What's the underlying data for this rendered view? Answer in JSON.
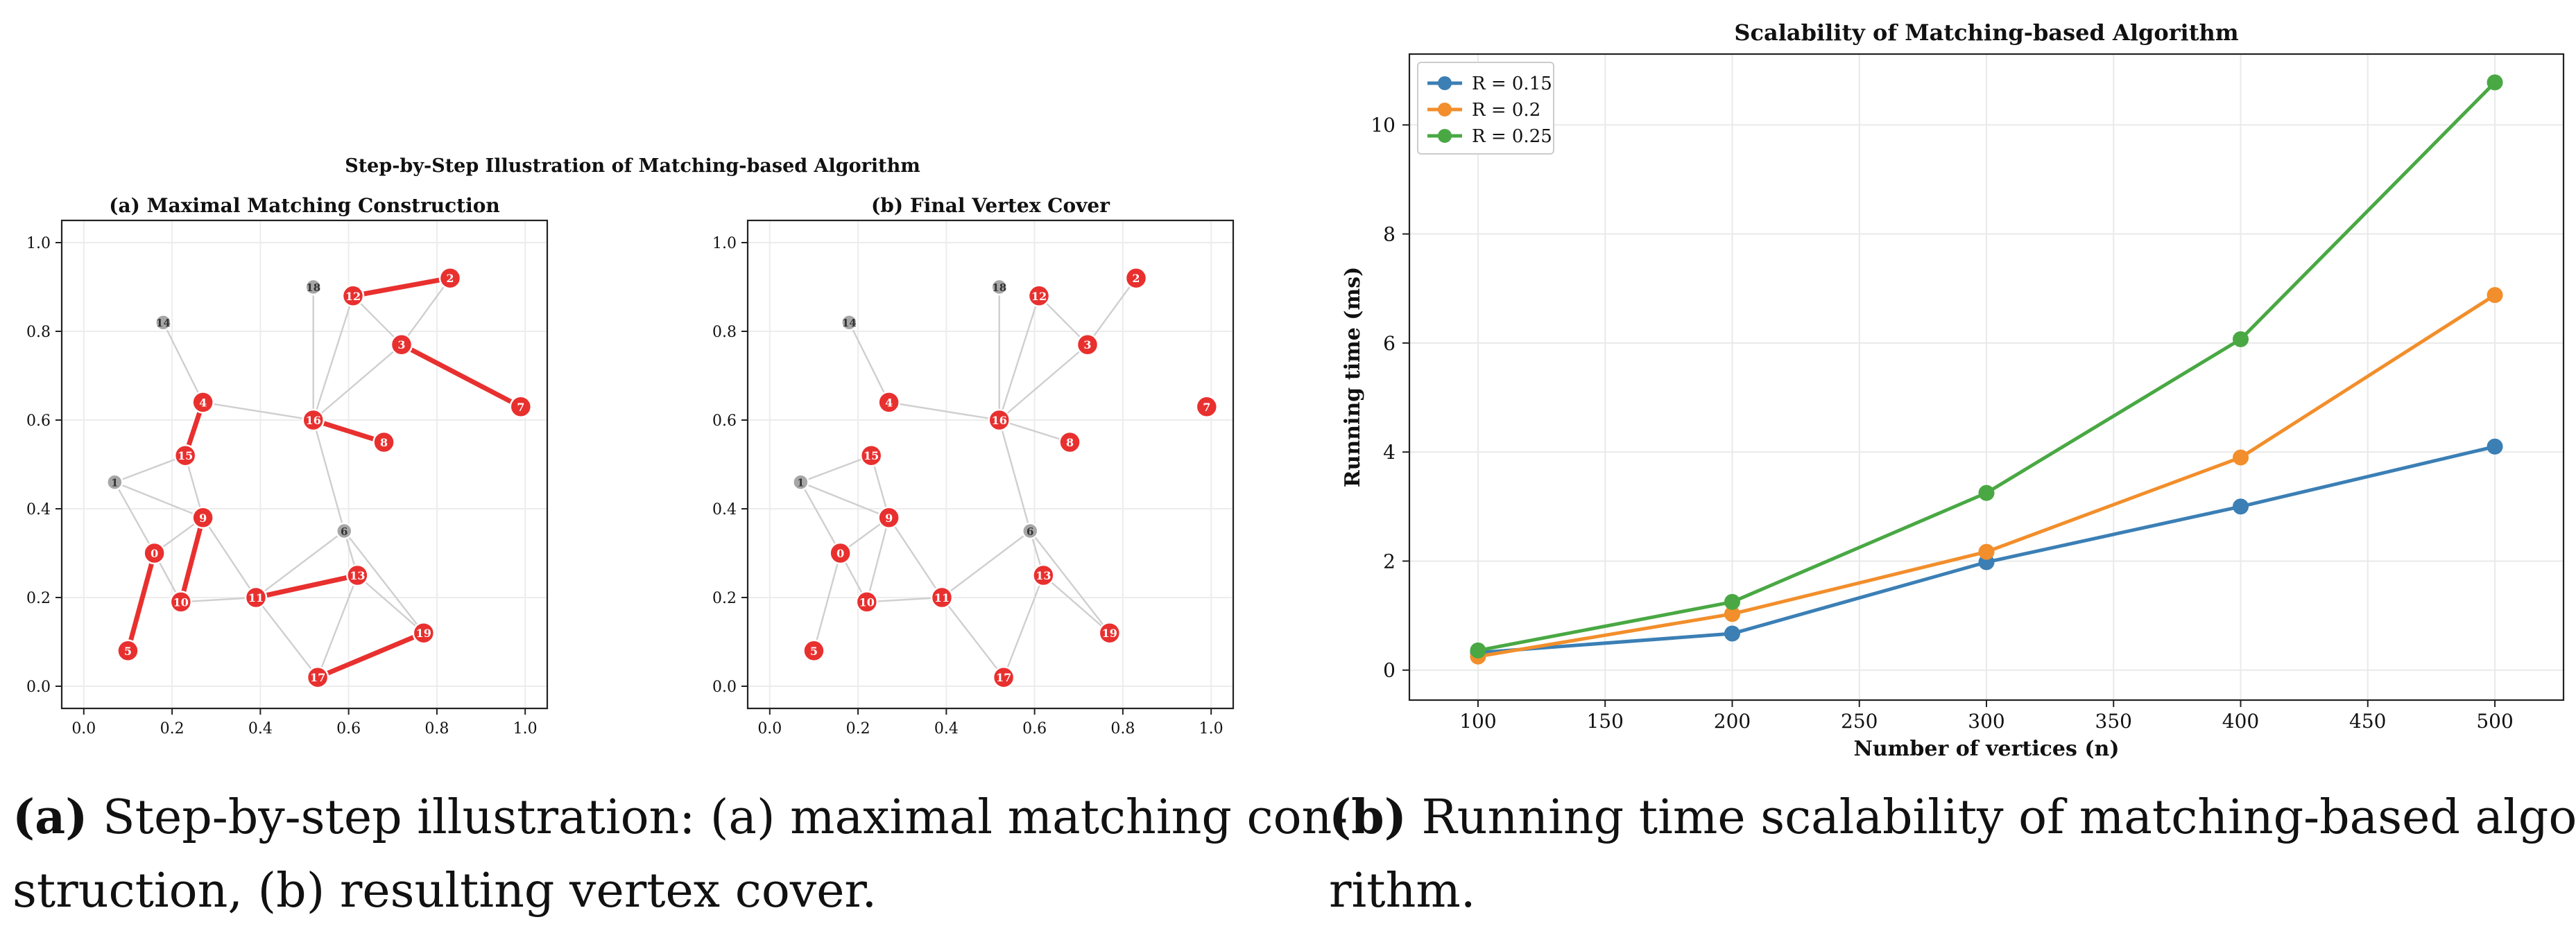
{
  "figure_left": {
    "suptitle": "Step-by-Step Illustration of Matching-based Algorithm",
    "caption_tag": "(a)",
    "caption_line1": " Step-by-step illustration: (a) maximal matching con-",
    "caption_line2": "struction, (b) resulting vertex cover."
  },
  "figure_right": {
    "caption_tag": "(b)",
    "caption_line1": " Running time scalability of matching-based algo-",
    "caption_line2": "rithm."
  },
  "colors": {
    "matched": "#e8302f",
    "unmatched": "#a6a6a6",
    "edge": "#cfcfcf",
    "series": [
      "#3b7fb5",
      "#f28e2b",
      "#49a843"
    ]
  },
  "chart_data": [
    {
      "type": "graph",
      "title": "(a) Maximal Matching Construction",
      "xlim": [
        -0.05,
        1.05
      ],
      "ylim": [
        -0.05,
        1.05
      ],
      "ticks": [
        0.0,
        0.2,
        0.4,
        0.6,
        0.8,
        1.0
      ],
      "tick_labels": [
        "0.0",
        "0.2",
        "0.4",
        "0.6",
        "0.8",
        "1.0"
      ],
      "grid": true,
      "nodes": [
        {
          "id": "0",
          "x": 0.16,
          "y": 0.3,
          "red": true
        },
        {
          "id": "1",
          "x": 0.07,
          "y": 0.46,
          "red": false
        },
        {
          "id": "2",
          "x": 0.83,
          "y": 0.92,
          "red": true
        },
        {
          "id": "3",
          "x": 0.72,
          "y": 0.77,
          "red": true
        },
        {
          "id": "4",
          "x": 0.27,
          "y": 0.64,
          "red": true
        },
        {
          "id": "5",
          "x": 0.1,
          "y": 0.08,
          "red": true
        },
        {
          "id": "6",
          "x": 0.59,
          "y": 0.35,
          "red": false
        },
        {
          "id": "7",
          "x": 0.99,
          "y": 0.63,
          "red": true
        },
        {
          "id": "8",
          "x": 0.68,
          "y": 0.55,
          "red": true
        },
        {
          "id": "9",
          "x": 0.27,
          "y": 0.38,
          "red": true
        },
        {
          "id": "10",
          "x": 0.22,
          "y": 0.19,
          "red": true
        },
        {
          "id": "11",
          "x": 0.39,
          "y": 0.2,
          "red": true
        },
        {
          "id": "12",
          "x": 0.61,
          "y": 0.88,
          "red": true
        },
        {
          "id": "13",
          "x": 0.62,
          "y": 0.25,
          "red": true
        },
        {
          "id": "14",
          "x": 0.18,
          "y": 0.82,
          "red": false
        },
        {
          "id": "15",
          "x": 0.23,
          "y": 0.52,
          "red": true
        },
        {
          "id": "16",
          "x": 0.52,
          "y": 0.6,
          "red": true
        },
        {
          "id": "17",
          "x": 0.53,
          "y": 0.02,
          "red": true
        },
        {
          "id": "18",
          "x": 0.52,
          "y": 0.9,
          "red": false
        },
        {
          "id": "19",
          "x": 0.77,
          "y": 0.12,
          "red": true
        }
      ],
      "edges": [
        [
          "14",
          "4"
        ],
        [
          "4",
          "16"
        ],
        [
          "1",
          "15"
        ],
        [
          "1",
          "9"
        ],
        [
          "1",
          "0"
        ],
        [
          "15",
          "9"
        ],
        [
          "0",
          "9"
        ],
        [
          "9",
          "10"
        ],
        [
          "0",
          "10"
        ],
        [
          "9",
          "11"
        ],
        [
          "10",
          "11"
        ],
        [
          "11",
          "6"
        ],
        [
          "11",
          "17"
        ],
        [
          "13",
          "19"
        ],
        [
          "6",
          "13"
        ],
        [
          "6",
          "16"
        ],
        [
          "6",
          "19"
        ],
        [
          "18",
          "16"
        ],
        [
          "12",
          "16"
        ],
        [
          "3",
          "16"
        ],
        [
          "12",
          "3"
        ],
        [
          "2",
          "3"
        ],
        [
          "16",
          "8"
        ],
        [
          "5",
          "0"
        ],
        [
          "17",
          "13"
        ]
      ],
      "matching": [
        [
          "5",
          "0"
        ],
        [
          "15",
          "4"
        ],
        [
          "9",
          "10"
        ],
        [
          "11",
          "13"
        ],
        [
          "17",
          "19"
        ],
        [
          "16",
          "8"
        ],
        [
          "12",
          "2"
        ],
        [
          "3",
          "7"
        ]
      ]
    },
    {
      "type": "graph",
      "title": "(b) Final Vertex Cover",
      "xlim": [
        -0.05,
        1.05
      ],
      "ylim": [
        -0.05,
        1.05
      ],
      "ticks": [
        0.0,
        0.2,
        0.4,
        0.6,
        0.8,
        1.0
      ],
      "tick_labels": [
        "0.0",
        "0.2",
        "0.4",
        "0.6",
        "0.8",
        "1.0"
      ],
      "grid": true
    },
    {
      "type": "line",
      "title": "Scalability of Matching-based Algorithm",
      "xlabel": "Number of vertices (n)",
      "ylabel": "Running time (ms)",
      "x": [
        100,
        200,
        300,
        400,
        500
      ],
      "xlim": [
        73,
        527
      ],
      "ylim": [
        -0.55,
        11.3
      ],
      "xticks": [
        100,
        150,
        200,
        250,
        300,
        350,
        400,
        450,
        500
      ],
      "yticks": [
        0,
        2,
        4,
        6,
        8,
        10
      ],
      "grid": true,
      "legend_position": "upper left",
      "series": [
        {
          "name": "R = 0.15",
          "values": [
            0.32,
            0.67,
            1.98,
            3.0,
            4.1
          ]
        },
        {
          "name": "R = 0.2",
          "values": [
            0.25,
            1.03,
            2.17,
            3.9,
            6.88
          ]
        },
        {
          "name": "R = 0.25",
          "values": [
            0.36,
            1.25,
            3.25,
            6.07,
            10.78
          ]
        }
      ]
    }
  ]
}
